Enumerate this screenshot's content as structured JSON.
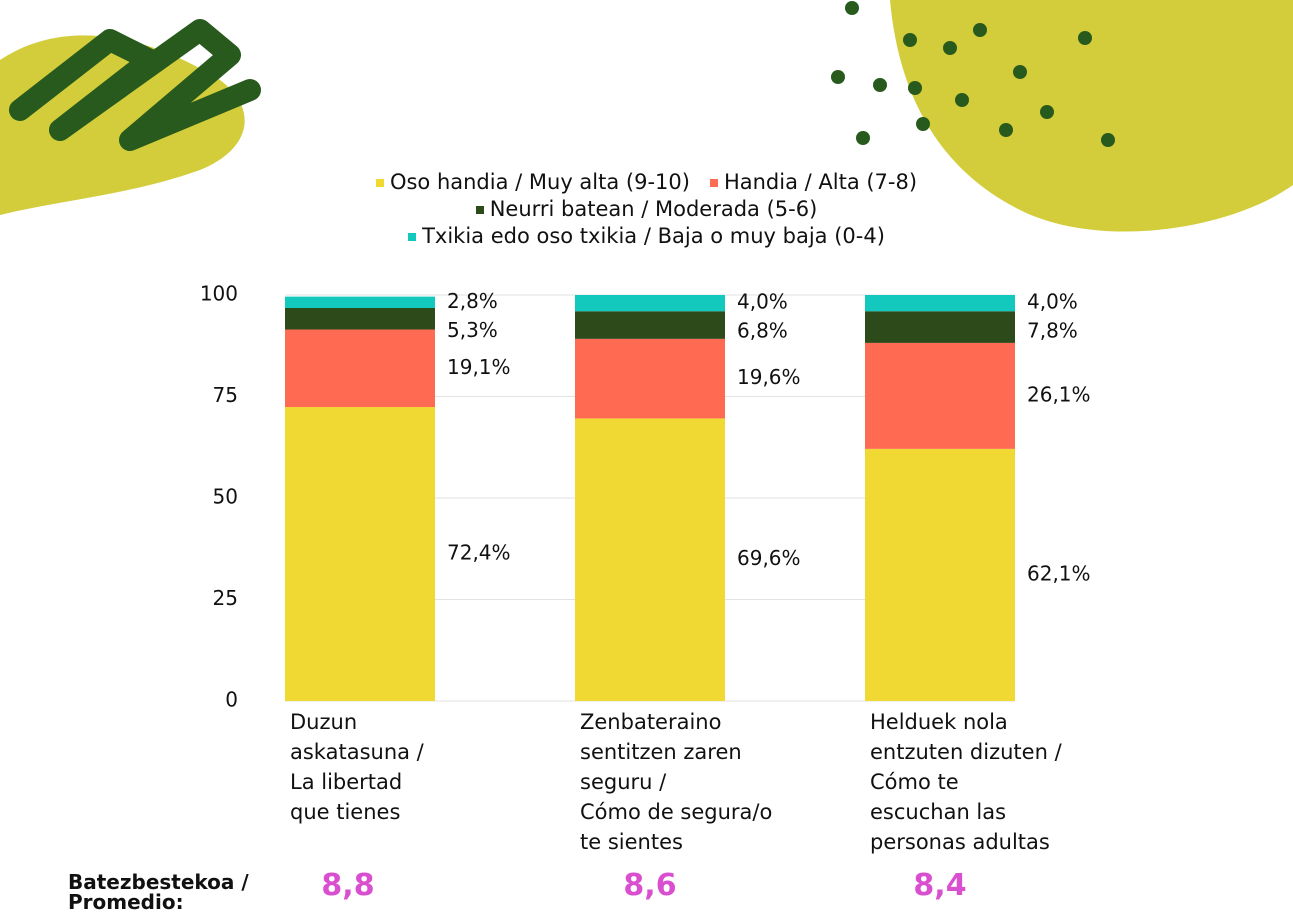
{
  "chart_data": {
    "type": "stacked_bar",
    "categories": [
      "Duzun\naskatasuna /\nLa libertad\nque tienes",
      "Zenbateraino\nsentitzen zaren\nseguru /\nCómo de segura/o\nte sientes",
      "Helduek nola\nentzuten dizuten /\nCómo te\nescuchan las\npersonas adultas"
    ],
    "series": [
      {
        "name": "Oso handia / Muy alta (9-10)",
        "color": "#f0d932",
        "values": [
          72.4,
          69.6,
          62.1
        ],
        "value_labels": [
          "72,4%",
          "69,6%",
          "62,1%"
        ]
      },
      {
        "name": "Handia / Alta (7-8)",
        "color": "#ff6a52",
        "values": [
          19.1,
          19.6,
          26.1
        ],
        "value_labels": [
          "19,1%",
          "19,6%",
          "26,1%"
        ]
      },
      {
        "name": "Neurri batean / Moderada (5-6)",
        "color": "#2d4a1a",
        "values": [
          5.3,
          6.8,
          7.8
        ],
        "value_labels": [
          "5,3%",
          "6,8%",
          "7,8%"
        ]
      },
      {
        "name": "Txikia edo oso txikia / Baja o muy baja (0-4)",
        "color": "#13c9bd",
        "values": [
          2.8,
          4.0,
          4.0
        ],
        "value_labels": [
          "2,8%",
          "4,0%",
          "4,0%"
        ]
      }
    ],
    "ylim": [
      0,
      100
    ],
    "yticks": [
      0,
      25,
      50,
      75,
      100
    ],
    "grid": true,
    "averages_label": "Batezbestekoa /\nPromedio:",
    "averages": [
      "8,8",
      "8,6",
      "8,4"
    ]
  }
}
